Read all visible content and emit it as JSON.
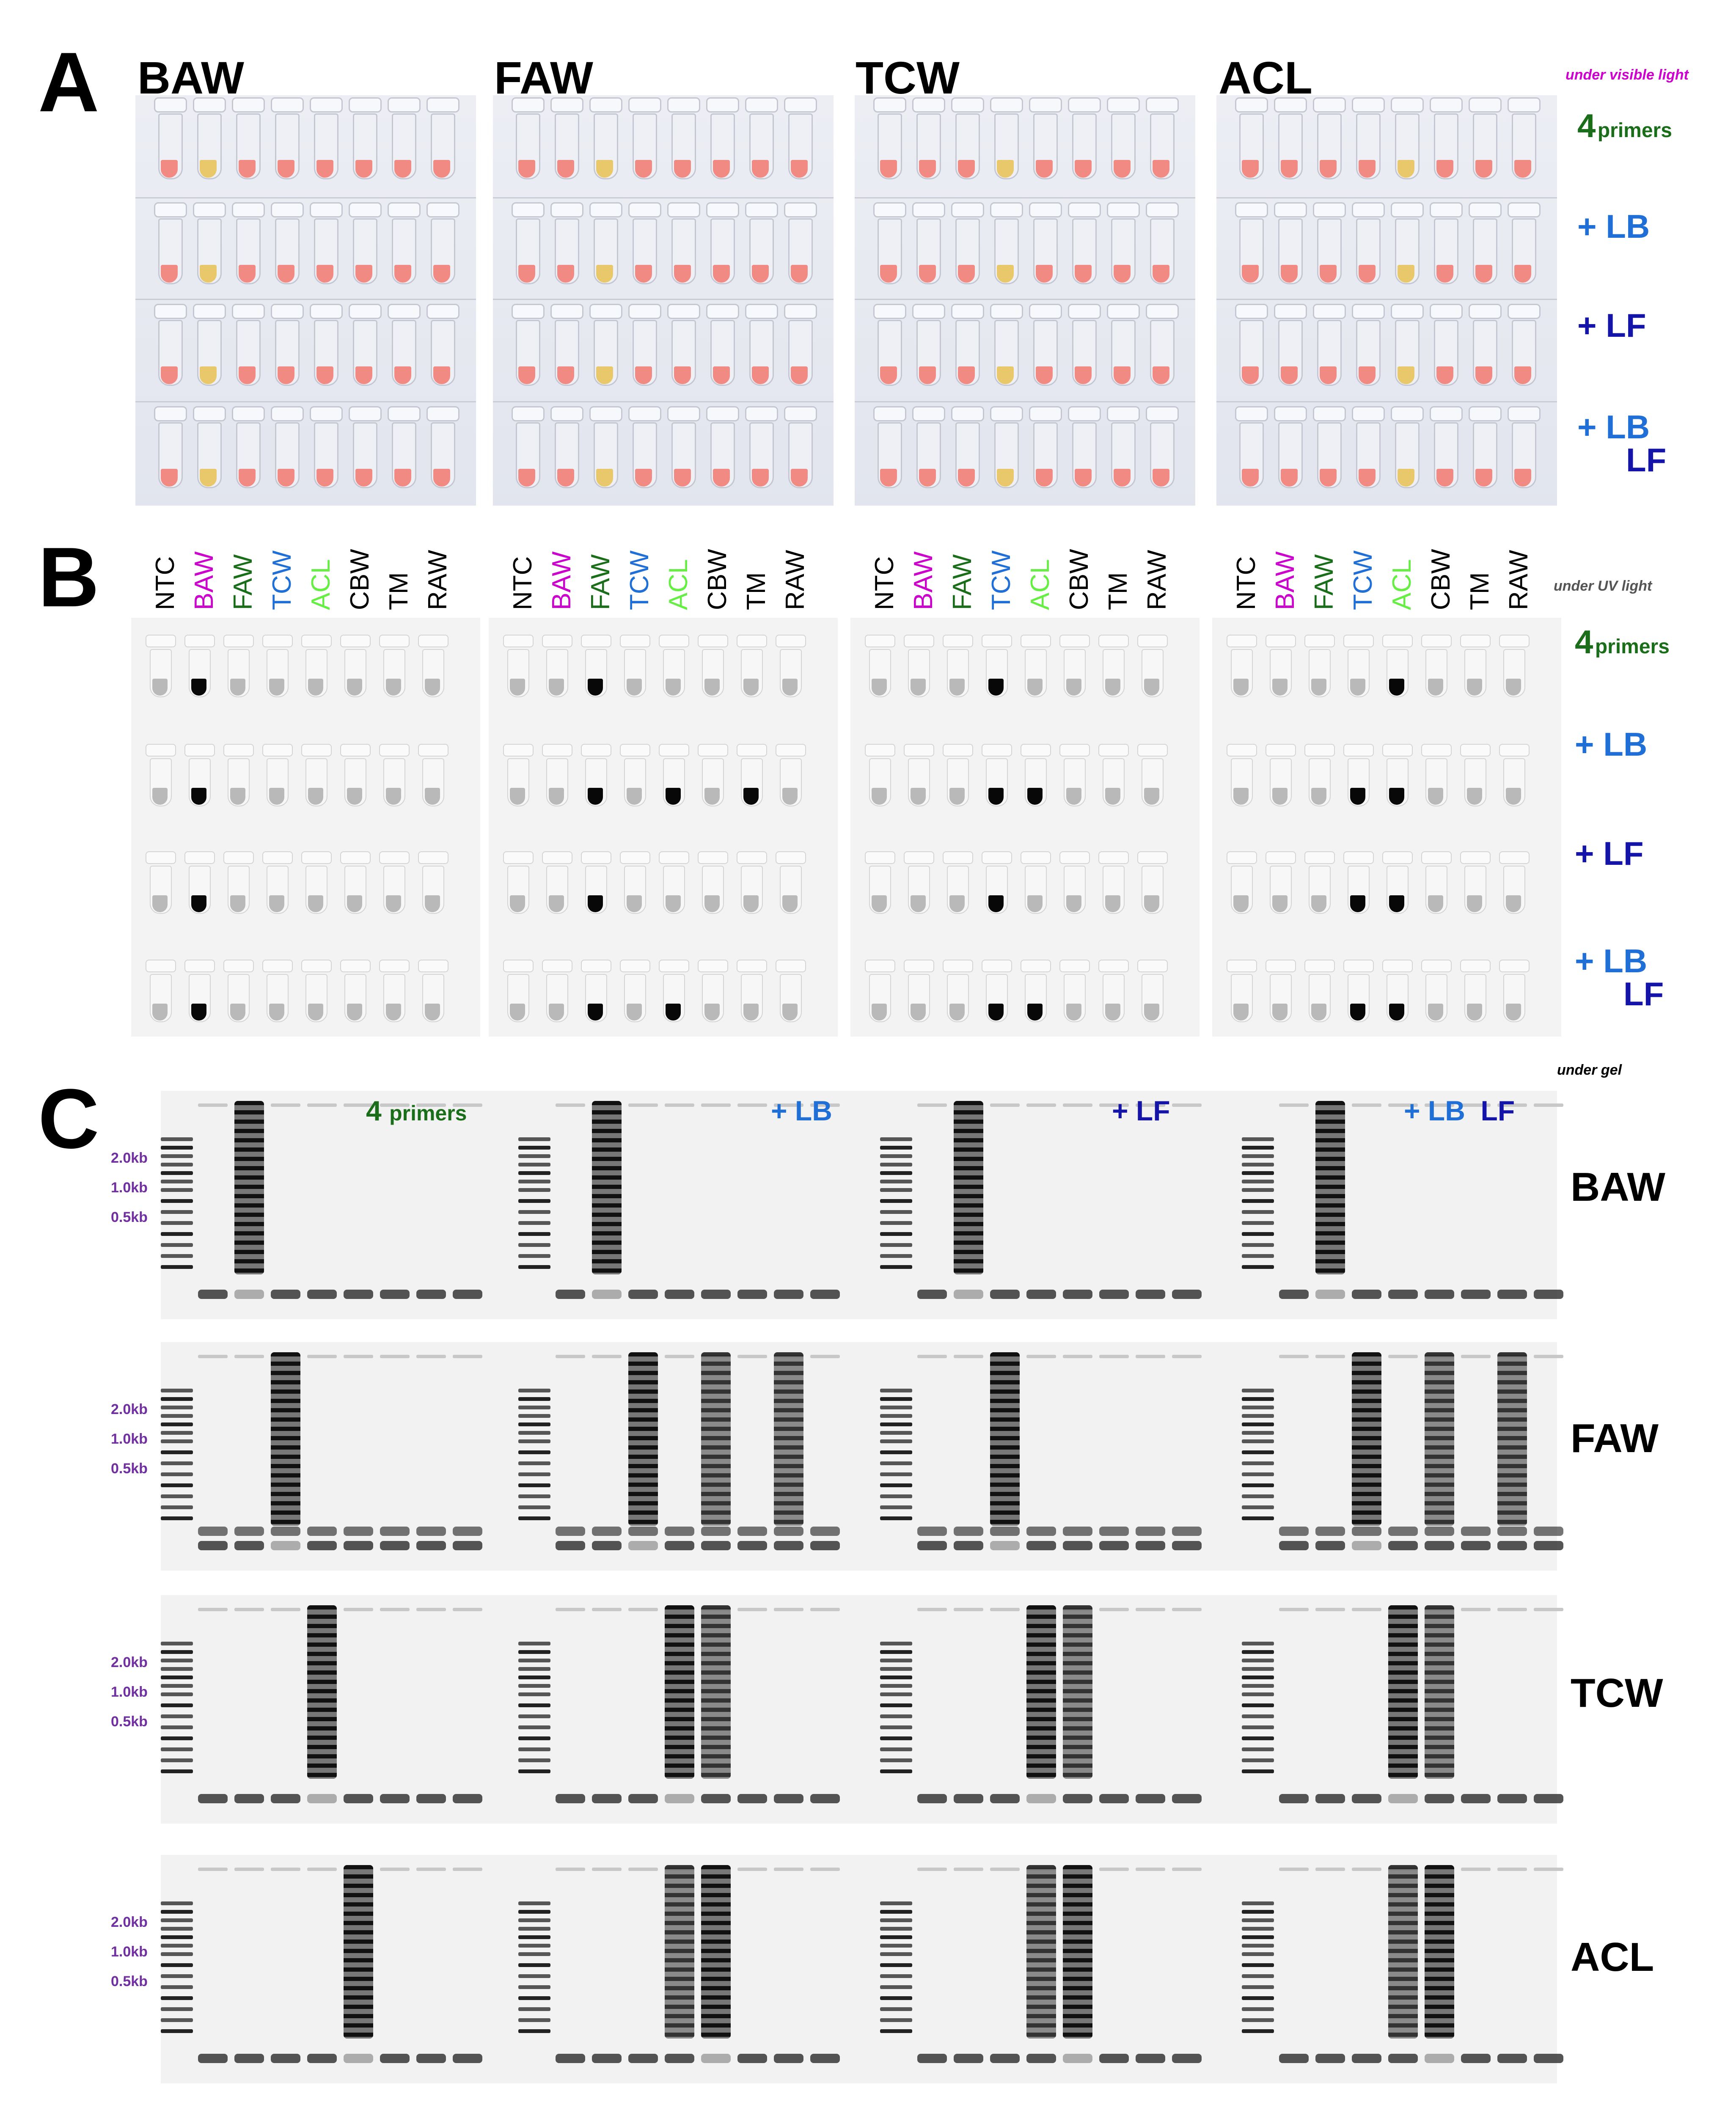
{
  "colors": {
    "black": "#000000",
    "magenta": "#cc00cc",
    "dark_green": "#1a6e1a",
    "blue": "#1f6fd6",
    "dark_blue": "#1414a8",
    "light_green": "#66ee44",
    "purple": "#7030a0",
    "pink_liquid": "#f28a84",
    "yellow_liquid": "#e8c86a"
  },
  "panel_letters": {
    "a": "A",
    "b": "B",
    "c": "C"
  },
  "species": [
    "BAW",
    "FAW",
    "TCW",
    "ACL"
  ],
  "notes": {
    "visible": "under visible light",
    "uv": "under UV light",
    "gel": "under gel"
  },
  "row_labels": {
    "four": "4",
    "primers": "primers",
    "plus_lb": "+ LB",
    "plus_lf": "+ LF",
    "plus": "+",
    "lb": "LB",
    "lf": "LF"
  },
  "lane_labels": [
    "NTC",
    "BAW",
    "FAW",
    "TCW",
    "ACL",
    "CBW",
    "TM",
    "RAW"
  ],
  "lane_label_colors": [
    "#000000",
    "#cc00cc",
    "#1a6e1a",
    "#1f6fd6",
    "#66ee44",
    "#000000",
    "#000000",
    "#000000"
  ],
  "size_markers": [
    "2.0kb",
    "1.0kb",
    "0.5kb"
  ],
  "gel_rows": [
    "BAW",
    "FAW",
    "TCW",
    "ACL"
  ],
  "gel_column_tags": [
    "4 primers",
    "+ LB",
    "+ LF",
    "+ LB LF"
  ],
  "positive_tube_index": {
    "BAW": 1,
    "FAW": 2,
    "TCW": 3,
    "ACL": 4
  },
  "uv_extra_positive": {
    "FAW-1": [
      4,
      6
    ],
    "TCW-1": [
      4
    ],
    "ACL-1": [
      3
    ],
    "ACL-2": [
      3
    ],
    "ACL-3": [
      3
    ],
    "FAW-3": [
      4
    ],
    "TCW-3": [
      4
    ]
  }
}
